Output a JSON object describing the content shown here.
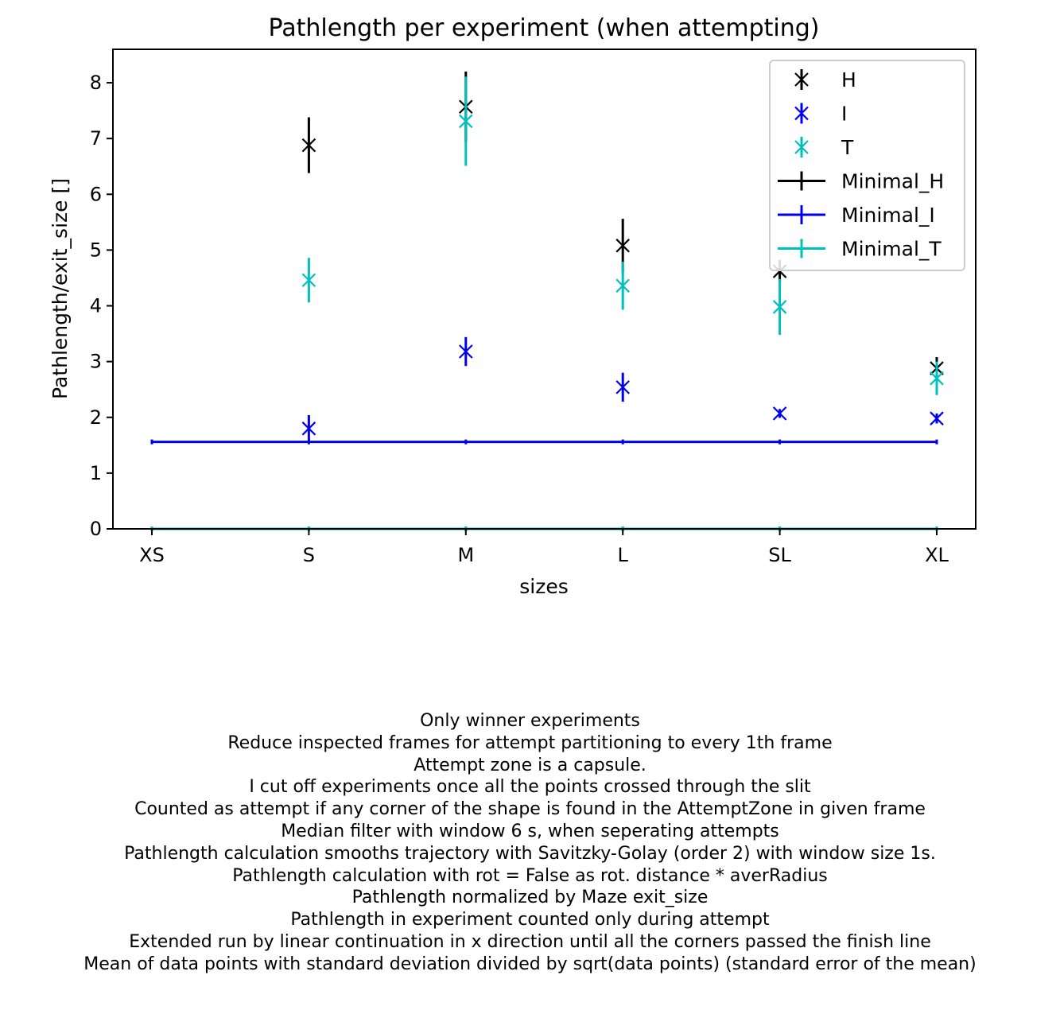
{
  "chart_data": {
    "type": "scatter",
    "title": "Pathlength per experiment (when attempting)",
    "xlabel": "sizes",
    "ylabel": "Pathlength/exit_size []",
    "categories": [
      "XS",
      "S",
      "M",
      "L",
      "SL",
      "XL"
    ],
    "ylim": [
      0,
      8.6
    ],
    "yticks": [
      "0",
      "1",
      "2",
      "3",
      "4",
      "5",
      "6",
      "7",
      "8"
    ],
    "grid": false,
    "legend_position": "top-right",
    "series": [
      {
        "name": "H",
        "color": "#000000",
        "marker": "x",
        "points": [
          {
            "x": "S",
            "y": 6.88,
            "err": 0.5
          },
          {
            "x": "M",
            "y": 7.57,
            "err": 0.63
          },
          {
            "x": "L",
            "y": 5.08,
            "err": 0.48
          },
          {
            "x": "SL",
            "y": 4.62,
            "err": 0.2
          },
          {
            "x": "XL",
            "y": 2.88,
            "err": 0.2
          }
        ]
      },
      {
        "name": "I",
        "color": "#0000ee",
        "marker": "x",
        "points": [
          {
            "x": "S",
            "y": 1.8,
            "err": 0.24
          },
          {
            "x": "M",
            "y": 3.18,
            "err": 0.26
          },
          {
            "x": "L",
            "y": 2.54,
            "err": 0.26
          },
          {
            "x": "SL",
            "y": 2.07,
            "err": 0.08
          },
          {
            "x": "XL",
            "y": 1.98,
            "err": 0.09
          }
        ]
      },
      {
        "name": "T",
        "color": "#00bfbf",
        "marker": "x",
        "points": [
          {
            "x": "S",
            "y": 4.46,
            "err": 0.4
          },
          {
            "x": "M",
            "y": 7.31,
            "err": 0.8
          },
          {
            "x": "L",
            "y": 4.36,
            "err": 0.43
          },
          {
            "x": "SL",
            "y": 3.98,
            "err": 0.5
          },
          {
            "x": "XL",
            "y": 2.7,
            "err": 0.3
          }
        ]
      },
      {
        "name": "Minimal_H",
        "color": "#000000",
        "style": "line",
        "values": [
          0,
          0,
          0,
          0,
          0,
          0
        ]
      },
      {
        "name": "Minimal_I",
        "color": "#0000ee",
        "style": "line",
        "values": [
          1.56,
          1.56,
          1.56,
          1.56,
          1.56,
          1.56
        ]
      },
      {
        "name": "Minimal_T",
        "color": "#00bfbf",
        "style": "line",
        "values": [
          0,
          0,
          0,
          0,
          0,
          0
        ]
      }
    ]
  },
  "notes": [
    "Only winner experiments",
    "Reduce inspected frames for attempt partitioning to every 1th frame",
    "Attempt zone is a capsule.",
    "I cut off experiments once all the points crossed through the slit",
    "Counted as attempt if any corner of the shape is found in the AttemptZone in given frame",
    "Median filter with window 6 s, when seperating attempts",
    "Pathlength calculation smooths trajectory with Savitzky-Golay (order 2) with window size 1s.",
    "Pathlength calculation with rot = False as rot. distance * averRadius",
    "Pathlength normalized by Maze exit_size",
    "Pathlength in experiment counted only during attempt",
    "Extended run by linear continuation in x direction until all the corners passed the finish line",
    "Mean of data points with standard deviation divided by sqrt(data points) (standard error of the mean)"
  ]
}
